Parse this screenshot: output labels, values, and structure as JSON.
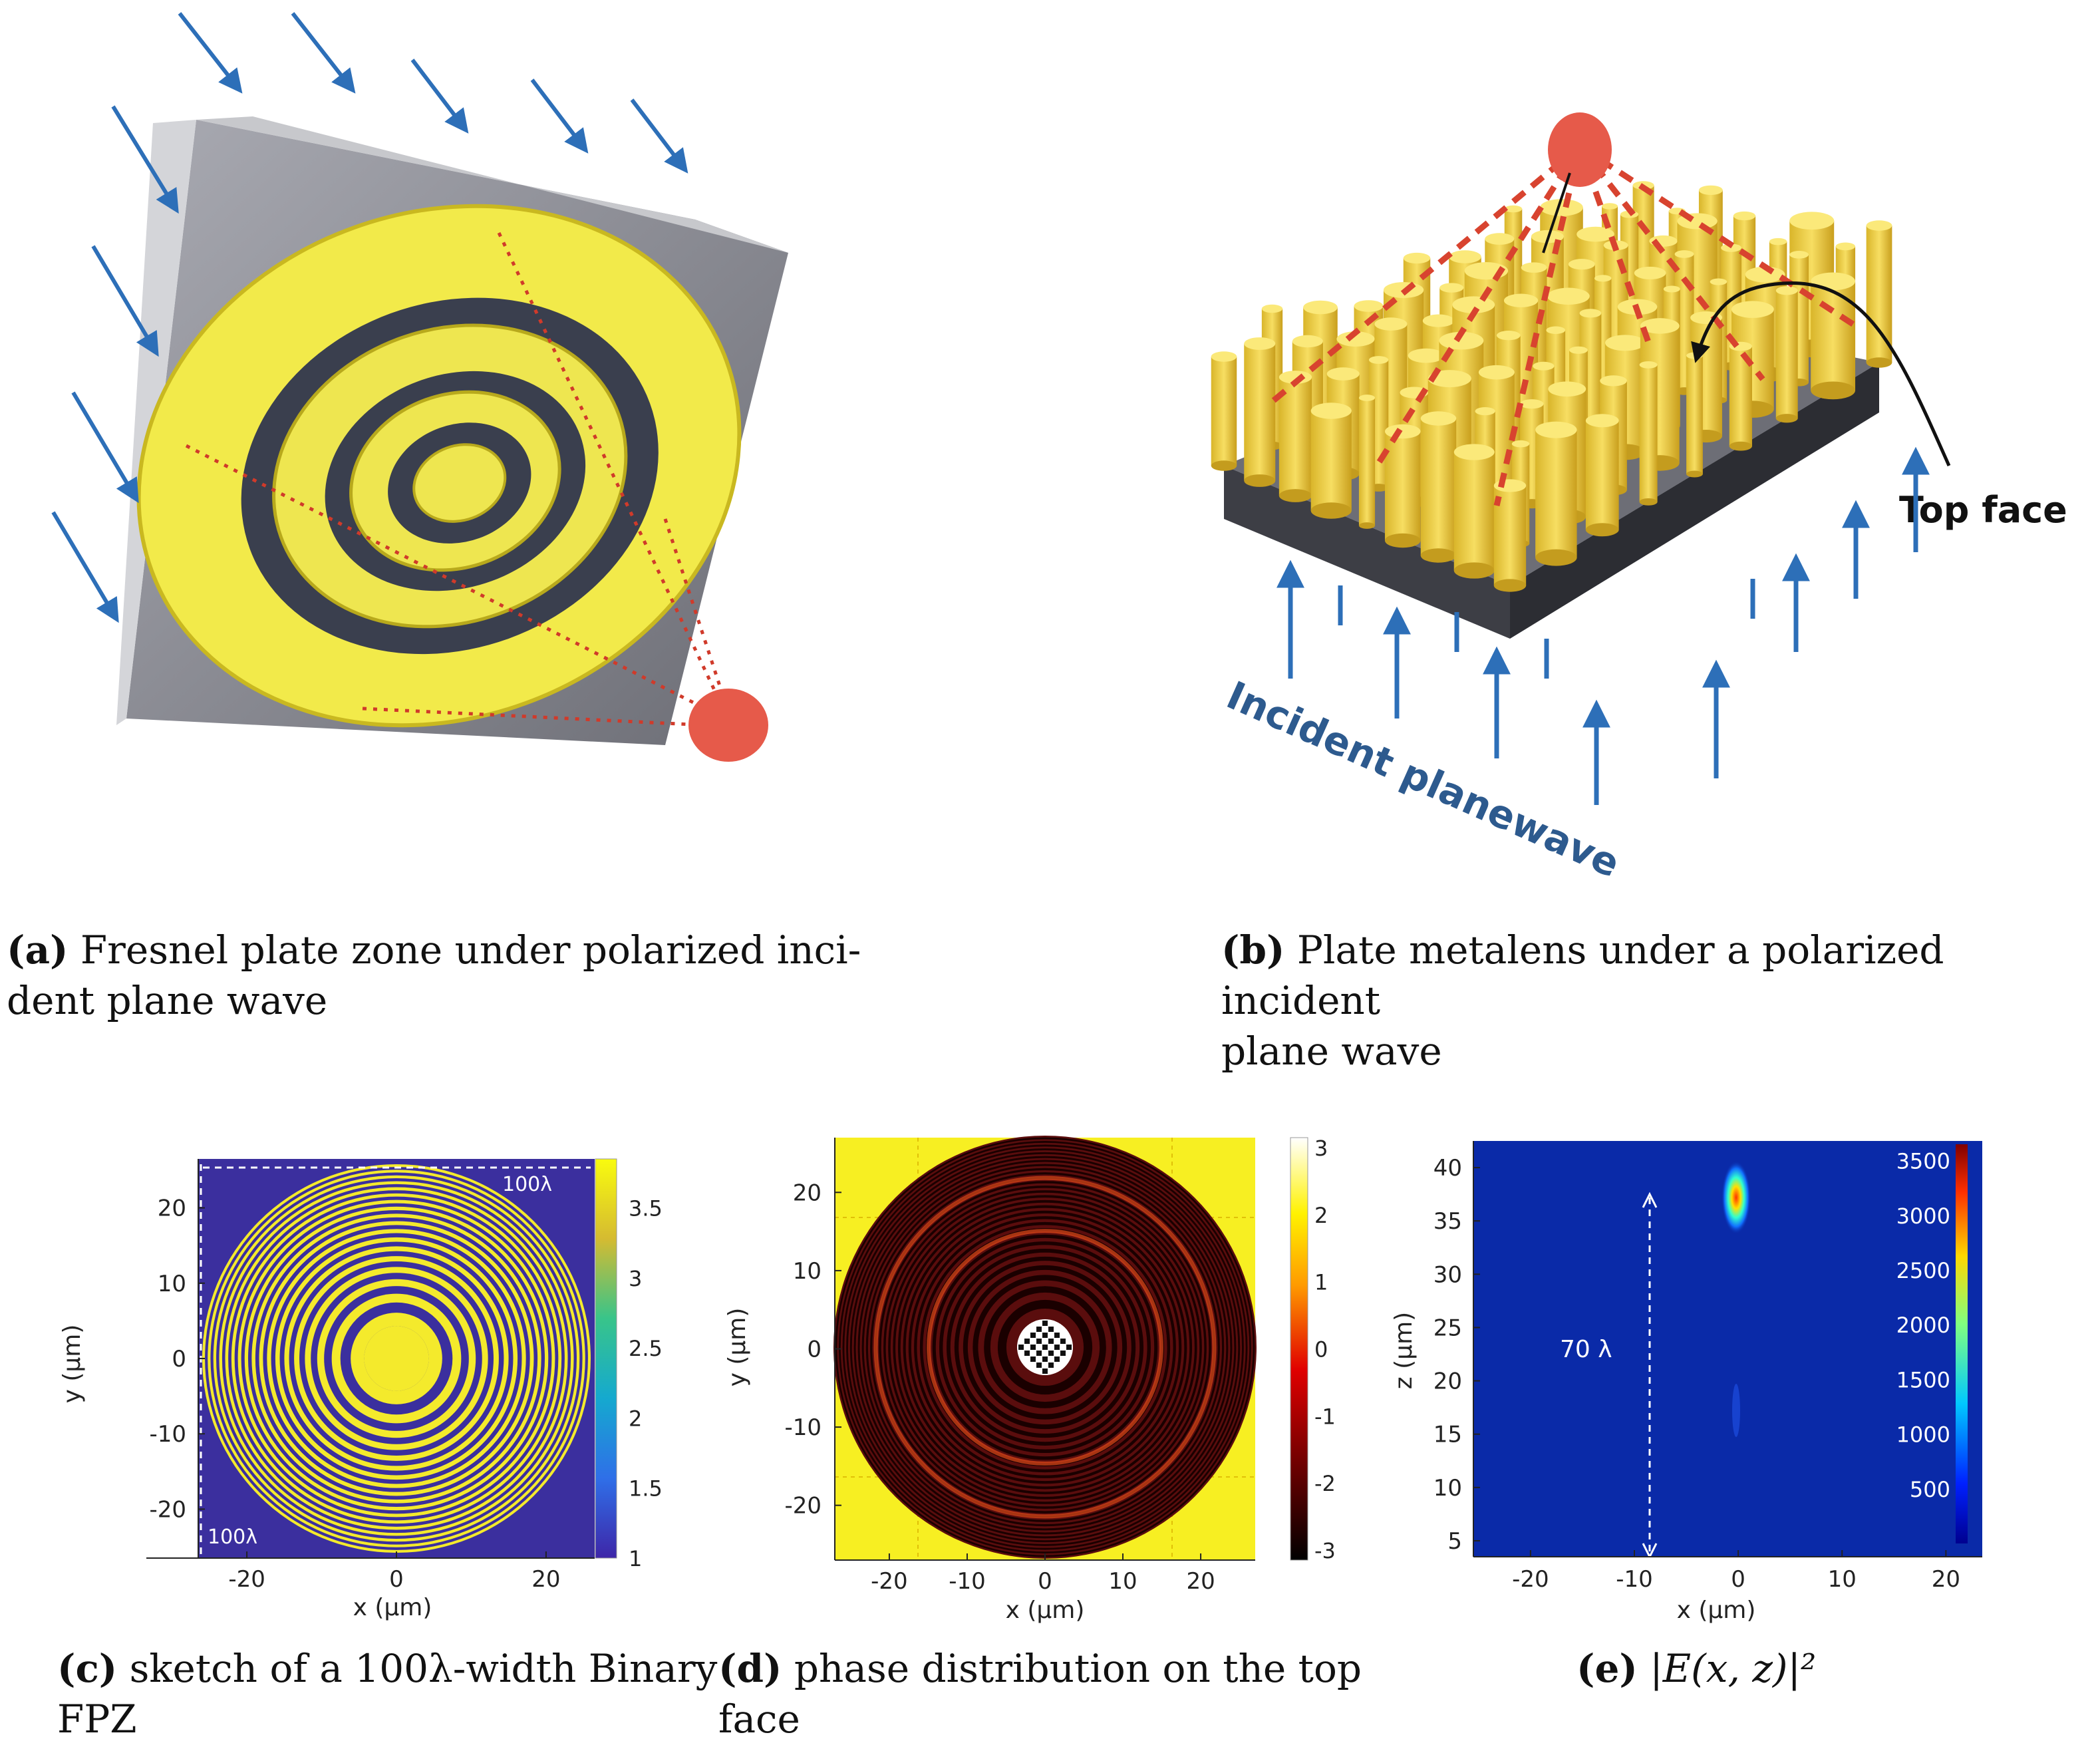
{
  "panel_a": {
    "caption_letter": "(a)",
    "caption_line1": "Fresnel plate zone under polarized inci-",
    "caption_line2": "dent plane wave"
  },
  "panel_b": {
    "label_top_face": "Top face",
    "label_incident": "Incident planewave",
    "caption_letter": "(b)",
    "caption_line1": "Plate metalens under a polarized incident",
    "caption_line2": "plane wave"
  },
  "panel_c": {
    "ylabel": "y (μm)",
    "xlabel": "x (μm)",
    "xticks": [
      "-20",
      "0",
      "20"
    ],
    "yticks": [
      "20",
      "10",
      "0",
      "-10",
      "-20"
    ],
    "colorbar_ticks": [
      "3.5",
      "3",
      "2.5",
      "2",
      "1.5",
      "1"
    ],
    "annot_top": "100λ",
    "annot_left": "100λ",
    "caption_letter": "(c)",
    "caption_line1": "sketch of a 100λ-width Binary",
    "caption_line2": "FPZ",
    "colors": {
      "background": "#3b2f9e",
      "ring": "#f4ea2c"
    }
  },
  "panel_d": {
    "ylabel": "y (μm)",
    "xlabel": "x (μm)",
    "xticks": [
      "-20",
      "-10",
      "0",
      "10",
      "20"
    ],
    "yticks": [
      "20",
      "10",
      "0",
      "-10",
      "-20"
    ],
    "colorbar_ticks": [
      "3",
      "2",
      "1",
      "0",
      "-1",
      "-2",
      "-3"
    ],
    "caption_letter": "(d)",
    "caption_line1": "phase distribution on the top",
    "caption_line2": "face",
    "colors": {
      "background": "#f7ef22",
      "ring": "#5a0d0d"
    }
  },
  "panel_e": {
    "ylabel": "z (μm)",
    "xlabel": "x (μm)",
    "xticks": [
      "-20",
      "-10",
      "0",
      "10",
      "20"
    ],
    "yticks": [
      "40",
      "35",
      "30",
      "25",
      "20",
      "15",
      "10",
      "5"
    ],
    "colorbar_ticks": [
      "3500",
      "3000",
      "2500",
      "2000",
      "1500",
      "1000",
      "500"
    ],
    "annot": "70 λ",
    "caption_letter": "(e)",
    "caption_text": "|E(x, z)|²",
    "colors": {
      "background": "#0a2aa8"
    }
  }
}
